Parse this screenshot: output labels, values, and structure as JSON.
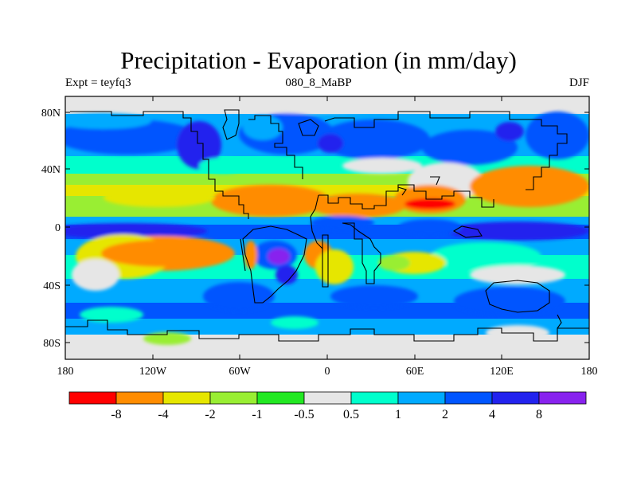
{
  "figure": {
    "title": "Precipitation - Evaporation (in mm/day)",
    "left_label": "Expt = teyfq3",
    "center_label": "080_8_MaBP",
    "right_label": "DJF"
  },
  "map": {
    "lat_ticks": [
      "80N",
      "40N",
      "0",
      "40S",
      "80S"
    ],
    "lon_ticks": [
      "180",
      "120W",
      "60W",
      "0",
      "60E",
      "120E",
      "180"
    ]
  },
  "colorbar": {
    "labels": [
      "-8",
      "-4",
      "-2",
      "-1",
      "-0.5",
      "0.5",
      "1",
      "2",
      "4",
      "8"
    ],
    "colors": [
      "#ff0000",
      "#ff8c00",
      "#e6e600",
      "#99ee33",
      "#22e822",
      "#e6e6e6",
      "#00ffcc",
      "#00aaff",
      "#0055ff",
      "#2222ee",
      "#8822ee"
    ]
  }
}
